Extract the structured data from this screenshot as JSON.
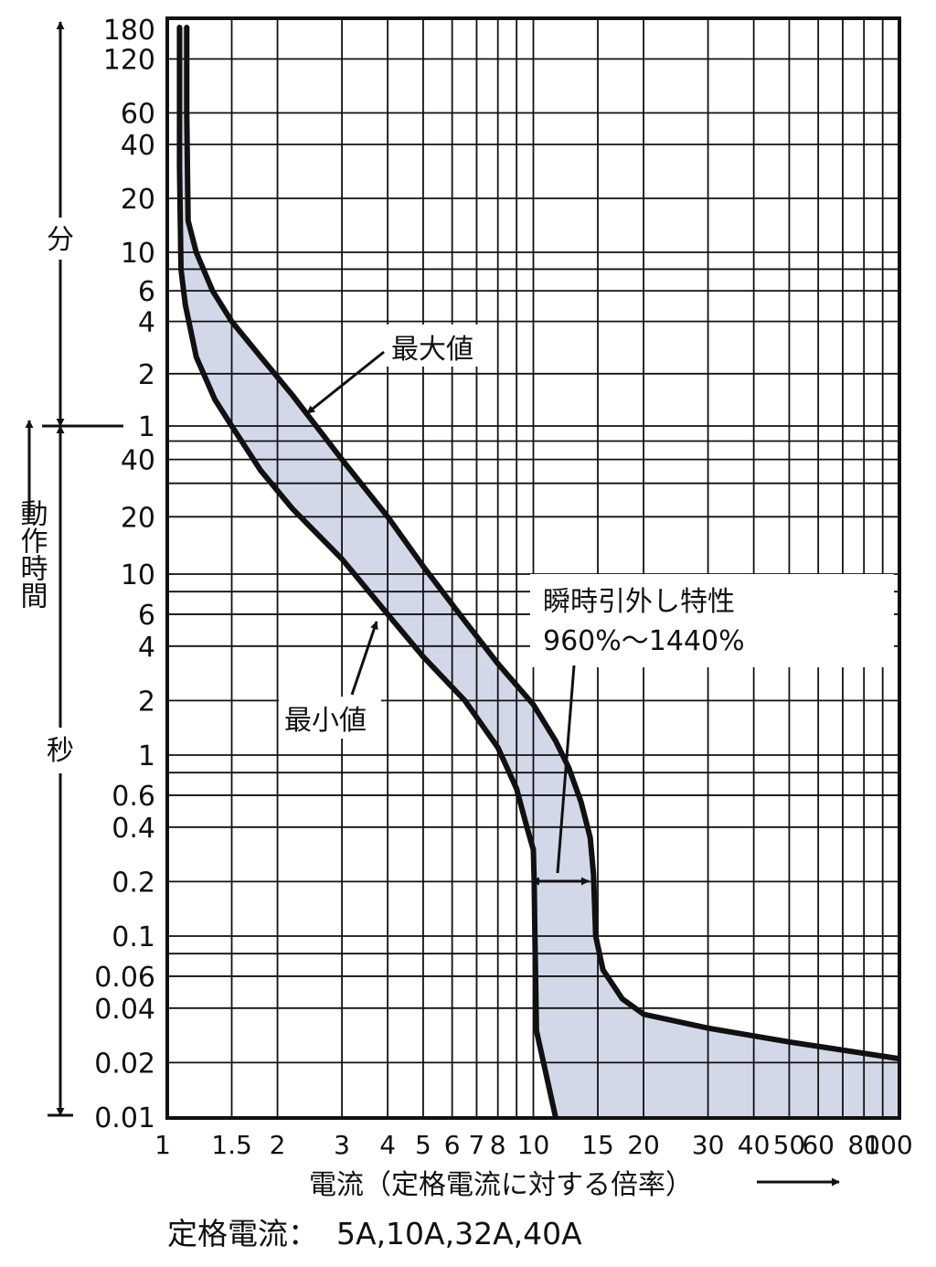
{
  "chart_data": {
    "type": "line",
    "x_scale": "log",
    "y_scale": "log",
    "xlim": [
      1,
      100
    ],
    "y_unit": "seconds",
    "ylim": [
      0.01,
      10800
    ],
    "grid": true,
    "x_tick_labels": [
      {
        "v": 1,
        "t": "1"
      },
      {
        "v": 1.5,
        "t": "1.5"
      },
      {
        "v": 2,
        "t": "2"
      },
      {
        "v": 3,
        "t": "3"
      },
      {
        "v": 4,
        "t": "4"
      },
      {
        "v": 5,
        "t": "5"
      },
      {
        "v": 6,
        "t": "6"
      },
      {
        "v": 7,
        "t": "7"
      },
      {
        "v": 8,
        "t": "8"
      },
      {
        "v": 10,
        "t": "10"
      },
      {
        "v": 15,
        "t": "15"
      },
      {
        "v": 20,
        "t": "20"
      },
      {
        "v": 30,
        "t": "30"
      },
      {
        "v": 40,
        "t": "40"
      },
      {
        "v": 50,
        "t": "50"
      },
      {
        "v": 60,
        "t": "60"
      },
      {
        "v": 80,
        "t": "80"
      },
      {
        "v": 100,
        "t": "100"
      }
    ],
    "y_tick_labels_minutes": [
      {
        "v": 10800,
        "t": "180"
      },
      {
        "v": 7200,
        "t": "120"
      },
      {
        "v": 3600,
        "t": "60"
      },
      {
        "v": 2400,
        "t": "40"
      },
      {
        "v": 1200,
        "t": "20"
      },
      {
        "v": 600,
        "t": "10"
      },
      {
        "v": 360,
        "t": "6"
      },
      {
        "v": 240,
        "t": "4"
      },
      {
        "v": 120,
        "t": "2"
      },
      {
        "v": 60,
        "t": "1"
      }
    ],
    "y_tick_labels_seconds": [
      {
        "v": 40,
        "t": "40"
      },
      {
        "v": 20,
        "t": "20"
      },
      {
        "v": 10,
        "t": "10"
      },
      {
        "v": 6,
        "t": "6"
      },
      {
        "v": 4,
        "t": "4"
      },
      {
        "v": 2,
        "t": "2"
      },
      {
        "v": 1,
        "t": "1"
      },
      {
        "v": 0.6,
        "t": "0.6"
      },
      {
        "v": 0.4,
        "t": "0.4"
      },
      {
        "v": 0.2,
        "t": "0.2"
      },
      {
        "v": 0.1,
        "t": "0.1"
      },
      {
        "v": 0.06,
        "t": "0.06"
      },
      {
        "v": 0.04,
        "t": "0.04"
      },
      {
        "v": 0.02,
        "t": "0.02"
      },
      {
        "v": 0.01,
        "t": "0.01"
      }
    ],
    "x_gridlines": [
      1.5,
      2,
      3,
      4,
      5,
      6,
      7,
      8,
      9,
      10,
      15,
      20,
      30,
      40,
      50,
      60,
      70,
      80,
      90
    ],
    "y_gridlines": [
      7200,
      3600,
      2400,
      1200,
      600,
      480,
      360,
      240,
      120,
      60,
      50,
      40,
      30,
      20,
      10,
      8,
      6,
      4,
      2,
      1,
      0.8,
      0.6,
      0.4,
      0.2,
      0.1,
      0.08,
      0.06,
      0.04,
      0.02
    ],
    "series": [
      {
        "name": "最大値",
        "x": [
          1.13,
          1.13,
          1.14,
          1.2,
          1.33,
          1.5,
          1.8,
          2.2,
          3.0,
          4.0,
          5.0,
          6.5,
          8.0,
          10.0,
          11.5,
          12.5,
          13.5,
          14.3,
          14.6,
          14.8,
          15.5,
          17.5,
          20.0,
          30.0,
          50.0,
          100.0
        ],
        "y": [
          10800,
          3600,
          900,
          600,
          360,
          240,
          150,
          90,
          40,
          20,
          11,
          5.5,
          3.2,
          1.9,
          1.2,
          0.85,
          0.55,
          0.35,
          0.22,
          0.1,
          0.065,
          0.045,
          0.037,
          0.031,
          0.026,
          0.021
        ]
      },
      {
        "name": "最小値",
        "x": [
          1.08,
          1.08,
          1.09,
          1.12,
          1.2,
          1.35,
          1.5,
          1.8,
          2.2,
          3.0,
          4.0,
          5.0,
          6.5,
          8.0,
          9.0,
          9.6,
          10.0,
          10.05,
          10.1,
          10.2,
          11.0,
          11.5
        ],
        "y": [
          10800,
          1800,
          480,
          300,
          150,
          85,
          60,
          35,
          22,
          12,
          6,
          3.5,
          2.0,
          1.1,
          0.65,
          0.4,
          0.3,
          0.2,
          0.1,
          0.03,
          0.015,
          0.01
        ]
      }
    ],
    "band_fill_color": "#d3d8e8",
    "line_color": "#111111",
    "grid_color": "#111111",
    "y_group_labels": {
      "minutes": "分",
      "seconds": "秒"
    },
    "y_title": "動作時間",
    "x_title": "電流（定格電流に対する倍率）",
    "annotations": {
      "max_label": "最大値",
      "min_label": "最小値",
      "instant_line1": "瞬時引外し特性",
      "instant_line2": "960%〜1440%"
    }
  },
  "footer": {
    "rated_current_label": "定格電流：",
    "rated_current_values": "5A,10A,32A,40A"
  }
}
